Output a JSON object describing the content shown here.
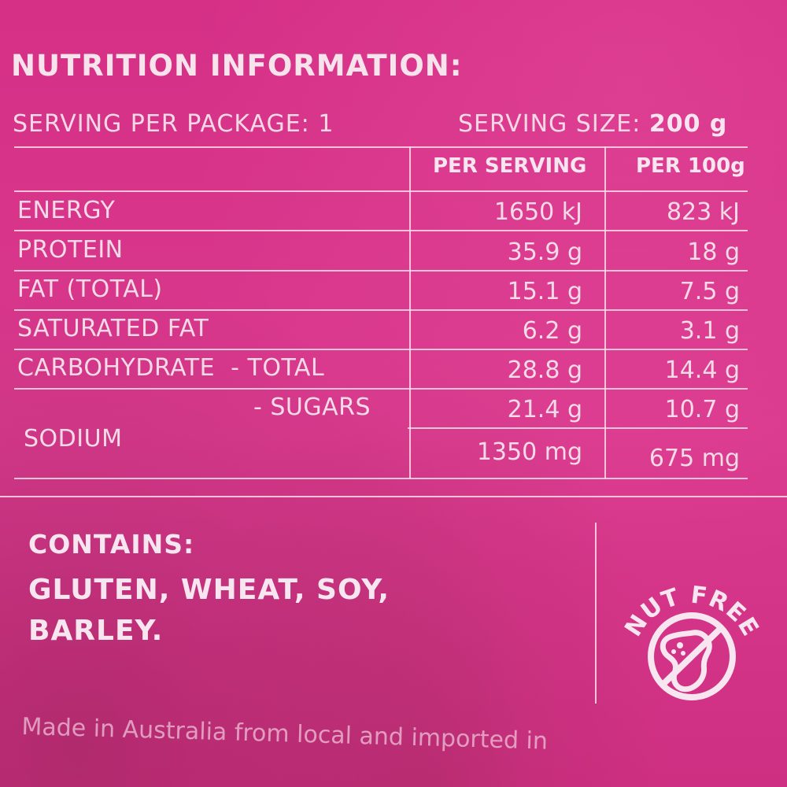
{
  "title": "NUTRITION INFORMATION:",
  "serving_per_package": "SERVING PER PACKAGE: 1",
  "serving_size_label": "SERVING SIZE:",
  "serving_size_value": "200 g",
  "columns": {
    "per_serving": "PER SERVING",
    "per_100g": "PER 100g"
  },
  "rows": [
    {
      "label": "ENERGY",
      "per_serving": "1650 kJ",
      "per_100g": "823 kJ"
    },
    {
      "label": "PROTEIN",
      "per_serving": "35.9 g",
      "per_100g": "18 g"
    },
    {
      "label": "FAT (TOTAL)",
      "per_serving": "15.1 g",
      "per_100g": "7.5 g"
    },
    {
      "label": "SATURATED FAT",
      "per_serving": "6.2 g",
      "per_100g": "3.1 g"
    },
    {
      "label": "CARBOHYDRATE  - TOTAL",
      "per_serving": "28.8 g",
      "per_100g": "14.4 g"
    },
    {
      "label": "- SUGARS",
      "per_serving": "21.4 g",
      "per_100g": "10.7 g"
    },
    {
      "label": "SODIUM",
      "per_serving": "1350 mg",
      "per_100g": "675 mg"
    }
  ],
  "contains": {
    "heading": "CONTAINS:",
    "text": "GLUTEN, WHEAT, SOY, BARLEY."
  },
  "badge": {
    "text": "NUT FREE",
    "icon": "no-peanut-icon"
  },
  "footer": "Made in Australia from local and imported in",
  "colors": {
    "background": "#d9338a",
    "text": "#f6e6ee"
  }
}
